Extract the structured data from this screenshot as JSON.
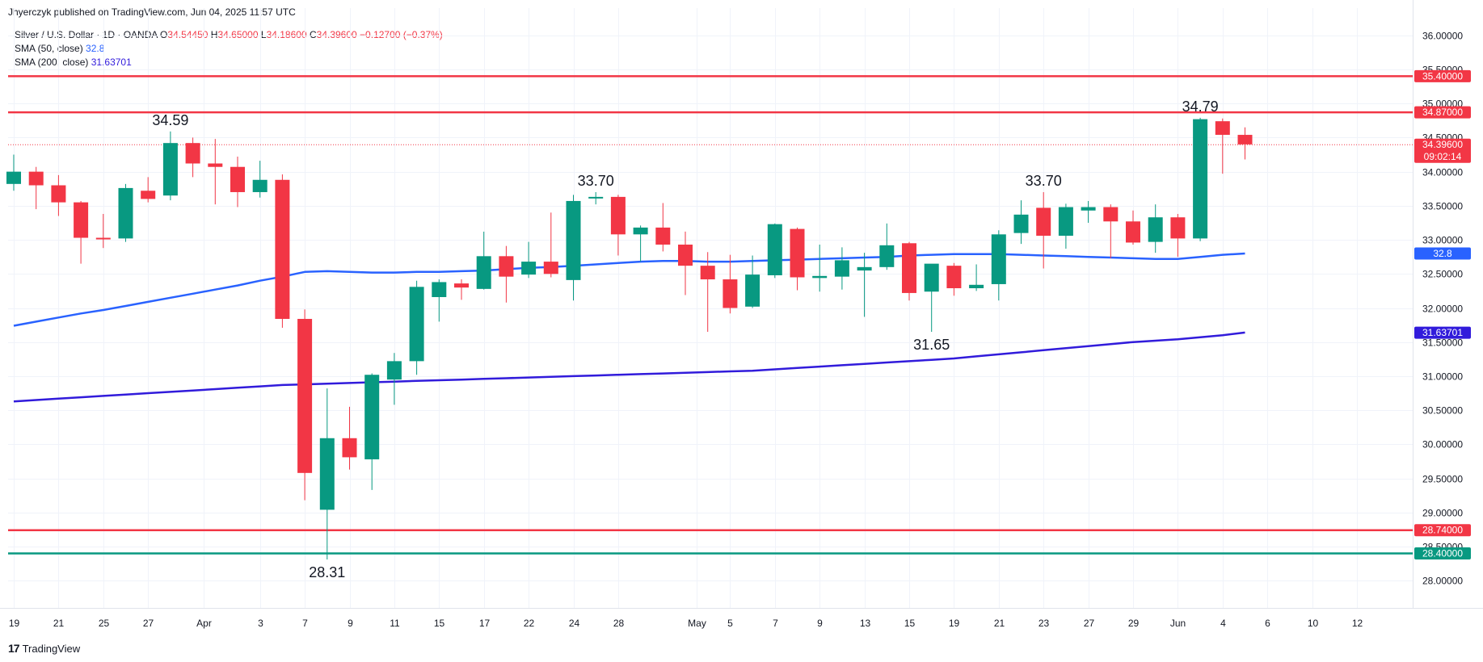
{
  "header": {
    "publisher_text": "Jhyerczyk published on TradingView.com, Jun 04, 2025 11:57 UTC"
  },
  "legend": {
    "symbol": "Silver / U.S. Dollar · 1D · OANDA",
    "open_label": "O",
    "open": "34.54450",
    "high_label": "H",
    "high": "34.65000",
    "low_label": "L",
    "low": "34.18600",
    "close_label": "C",
    "close": "34.39600",
    "change": "−0.12700 (−0.37%)",
    "sma50_label": "SMA (50, close)",
    "sma50_value": "32.8",
    "sma200_label": "SMA (200, close)",
    "sma200_value": "31.63701"
  },
  "footer": {
    "logo_text": "TradingView"
  },
  "colors": {
    "up": "#089981",
    "down": "#f23645",
    "sma50": "#2962ff",
    "sma200": "#311bdb",
    "resistance": "#f23645",
    "support_green": "#089981",
    "grid": "#f0f3fa",
    "axis_text": "#131722"
  },
  "chart_data": {
    "type": "candlestick",
    "title": "Silver / U.S. Dollar · 1D · OANDA",
    "ylim": [
      27.6,
      36.4
    ],
    "y_ticks": [
      "28.00000",
      "28.50000",
      "29.00000",
      "29.50000",
      "30.00000",
      "30.50000",
      "31.00000",
      "31.50000",
      "32.00000",
      "32.50000",
      "33.00000",
      "33.50000",
      "34.00000",
      "34.50000",
      "35.00000",
      "35.50000",
      "36.00000"
    ],
    "x_tick_labels": [
      {
        "label": "19",
        "i": 0
      },
      {
        "label": "21",
        "i": 2
      },
      {
        "label": "25",
        "i": 4
      },
      {
        "label": "27",
        "i": 6
      },
      {
        "label": "Apr",
        "i": 8.5
      },
      {
        "label": "3",
        "i": 11
      },
      {
        "label": "7",
        "i": 13
      },
      {
        "label": "9",
        "i": 15
      },
      {
        "label": "11",
        "i": 17
      },
      {
        "label": "15",
        "i": 19
      },
      {
        "label": "17",
        "i": 21
      },
      {
        "label": "22",
        "i": 23
      },
      {
        "label": "24",
        "i": 25
      },
      {
        "label": "28",
        "i": 27
      },
      {
        "label": "May",
        "i": 30.5
      },
      {
        "label": "5",
        "i": 32
      },
      {
        "label": "7",
        "i": 34
      },
      {
        "label": "9",
        "i": 36
      },
      {
        "label": "13",
        "i": 38
      },
      {
        "label": "15",
        "i": 40
      },
      {
        "label": "19",
        "i": 42
      },
      {
        "label": "21",
        "i": 44
      },
      {
        "label": "23",
        "i": 46
      },
      {
        "label": "27",
        "i": 48
      },
      {
        "label": "29",
        "i": 50
      },
      {
        "label": "Jun",
        "i": 52
      },
      {
        "label": "4",
        "i": 54
      },
      {
        "label": "6",
        "i": 56
      },
      {
        "label": "10",
        "i": 58
      },
      {
        "label": "12",
        "i": 60
      }
    ],
    "candles": [
      {
        "o": 33.82,
        "h": 34.25,
        "l": 33.72,
        "c": 34.0
      },
      {
        "o": 34.0,
        "h": 34.07,
        "l": 33.45,
        "c": 33.8
      },
      {
        "o": 33.8,
        "h": 33.95,
        "l": 33.35,
        "c": 33.55
      },
      {
        "o": 33.55,
        "h": 33.57,
        "l": 32.65,
        "c": 33.03
      },
      {
        "o": 33.03,
        "h": 33.38,
        "l": 32.88,
        "c": 33.02
      },
      {
        "o": 33.02,
        "h": 33.82,
        "l": 32.97,
        "c": 33.76
      },
      {
        "o": 33.72,
        "h": 33.92,
        "l": 33.55,
        "c": 33.6
      },
      {
        "o": 33.65,
        "h": 34.59,
        "l": 33.58,
        "c": 34.42
      },
      {
        "o": 34.42,
        "h": 34.5,
        "l": 33.92,
        "c": 34.12
      },
      {
        "o": 34.12,
        "h": 34.48,
        "l": 33.52,
        "c": 34.07
      },
      {
        "o": 34.07,
        "h": 34.22,
        "l": 33.48,
        "c": 33.7
      },
      {
        "o": 33.7,
        "h": 34.16,
        "l": 33.62,
        "c": 33.88
      },
      {
        "o": 33.88,
        "h": 33.96,
        "l": 31.71,
        "c": 31.84
      },
      {
        "o": 31.84,
        "h": 31.98,
        "l": 29.18,
        "c": 29.58
      },
      {
        "o": 29.04,
        "h": 30.82,
        "l": 28.31,
        "c": 30.09
      },
      {
        "o": 30.09,
        "h": 30.55,
        "l": 29.63,
        "c": 29.81
      },
      {
        "o": 29.78,
        "h": 31.04,
        "l": 29.33,
        "c": 31.02
      },
      {
        "o": 30.95,
        "h": 31.34,
        "l": 30.58,
        "c": 31.22
      },
      {
        "o": 31.22,
        "h": 32.4,
        "l": 31.02,
        "c": 32.31
      },
      {
        "o": 32.16,
        "h": 32.42,
        "l": 31.8,
        "c": 32.38
      },
      {
        "o": 32.36,
        "h": 32.42,
        "l": 32.12,
        "c": 32.3
      },
      {
        "o": 32.28,
        "h": 33.12,
        "l": 32.27,
        "c": 32.76
      },
      {
        "o": 32.76,
        "h": 32.91,
        "l": 32.08,
        "c": 32.46
      },
      {
        "o": 32.49,
        "h": 32.97,
        "l": 32.44,
        "c": 32.68
      },
      {
        "o": 32.68,
        "h": 33.4,
        "l": 32.45,
        "c": 32.5
      },
      {
        "o": 32.41,
        "h": 33.66,
        "l": 32.11,
        "c": 33.57
      },
      {
        "o": 33.61,
        "h": 33.7,
        "l": 33.52,
        "c": 33.63
      },
      {
        "o": 33.63,
        "h": 33.66,
        "l": 32.77,
        "c": 33.08
      },
      {
        "o": 33.08,
        "h": 33.21,
        "l": 32.68,
        "c": 33.18
      },
      {
        "o": 33.18,
        "h": 33.54,
        "l": 32.83,
        "c": 32.93
      },
      {
        "o": 32.93,
        "h": 33.12,
        "l": 32.19,
        "c": 32.62
      },
      {
        "o": 32.62,
        "h": 32.82,
        "l": 31.65,
        "c": 32.42
      },
      {
        "o": 32.42,
        "h": 32.78,
        "l": 31.92,
        "c": 32.0
      },
      {
        "o": 32.02,
        "h": 32.77,
        "l": 32.0,
        "c": 32.49
      },
      {
        "o": 32.48,
        "h": 33.24,
        "l": 32.44,
        "c": 33.23
      },
      {
        "o": 33.16,
        "h": 33.18,
        "l": 32.26,
        "c": 32.45
      },
      {
        "o": 32.44,
        "h": 32.93,
        "l": 32.24,
        "c": 32.47
      },
      {
        "o": 32.46,
        "h": 32.89,
        "l": 32.27,
        "c": 32.7
      },
      {
        "o": 32.55,
        "h": 32.81,
        "l": 31.87,
        "c": 32.6
      },
      {
        "o": 32.6,
        "h": 33.24,
        "l": 32.56,
        "c": 32.92
      },
      {
        "o": 32.95,
        "h": 32.97,
        "l": 32.11,
        "c": 32.22
      },
      {
        "o": 32.24,
        "h": 32.64,
        "l": 31.65,
        "c": 32.65
      },
      {
        "o": 32.62,
        "h": 32.66,
        "l": 32.18,
        "c": 32.29
      },
      {
        "o": 32.29,
        "h": 32.64,
        "l": 32.25,
        "c": 32.34
      },
      {
        "o": 32.35,
        "h": 33.14,
        "l": 32.11,
        "c": 33.08
      },
      {
        "o": 33.1,
        "h": 33.58,
        "l": 32.94,
        "c": 33.37
      },
      {
        "o": 33.47,
        "h": 33.7,
        "l": 32.58,
        "c": 33.06
      },
      {
        "o": 33.06,
        "h": 33.53,
        "l": 32.87,
        "c": 33.48
      },
      {
        "o": 33.43,
        "h": 33.57,
        "l": 33.25,
        "c": 33.48
      },
      {
        "o": 33.48,
        "h": 33.52,
        "l": 32.73,
        "c": 33.27
      },
      {
        "o": 33.27,
        "h": 33.43,
        "l": 32.93,
        "c": 32.96
      },
      {
        "o": 32.97,
        "h": 33.52,
        "l": 32.81,
        "c": 33.33
      },
      {
        "o": 33.33,
        "h": 33.38,
        "l": 32.75,
        "c": 33.02
      },
      {
        "o": 33.02,
        "h": 34.79,
        "l": 32.98,
        "c": 34.77
      },
      {
        "o": 34.74,
        "h": 34.78,
        "l": 33.97,
        "c": 34.54
      },
      {
        "o": 34.54,
        "h": 34.65,
        "l": 34.18,
        "c": 34.4
      }
    ],
    "sma50": [
      31.74,
      31.8,
      31.86,
      31.92,
      31.97,
      32.03,
      32.09,
      32.15,
      32.21,
      32.27,
      32.33,
      32.4,
      32.46,
      32.53,
      32.54,
      32.53,
      32.52,
      32.52,
      32.53,
      32.53,
      32.54,
      32.55,
      32.57,
      32.59,
      32.6,
      32.62,
      32.64,
      32.66,
      32.68,
      32.69,
      32.69,
      32.68,
      32.68,
      32.69,
      32.7,
      32.71,
      32.72,
      32.73,
      32.74,
      32.75,
      32.77,
      32.78,
      32.79,
      32.79,
      32.79,
      32.78,
      32.77,
      32.76,
      32.75,
      32.74,
      32.73,
      32.72,
      32.72,
      32.75,
      32.78,
      32.8
    ],
    "sma200": [
      30.63,
      30.65,
      30.67,
      30.69,
      30.71,
      30.73,
      30.75,
      30.77,
      30.79,
      30.81,
      30.83,
      30.85,
      30.87,
      30.88,
      30.89,
      30.9,
      30.91,
      30.92,
      30.93,
      30.94,
      30.95,
      30.96,
      30.97,
      30.98,
      30.99,
      31.0,
      31.01,
      31.02,
      31.03,
      31.04,
      31.05,
      31.06,
      31.07,
      31.08,
      31.1,
      31.12,
      31.14,
      31.16,
      31.18,
      31.2,
      31.22,
      31.24,
      31.26,
      31.29,
      31.32,
      31.35,
      31.38,
      31.41,
      31.44,
      31.47,
      31.5,
      31.52,
      31.54,
      31.57,
      31.6,
      31.64
    ],
    "horizontal_lines": [
      {
        "value": 35.4,
        "label": "35.40000",
        "color": "#f23645"
      },
      {
        "value": 34.87,
        "label": "34.87000",
        "color": "#f23645"
      },
      {
        "value": 28.74,
        "label": "28.74000",
        "color": "#f23645"
      },
      {
        "value": 28.4,
        "label": "28.40000",
        "color": "#089981"
      }
    ],
    "price_line": {
      "value": 34.396,
      "label": "34.39600",
      "countdown": "09:02:14"
    },
    "sma_tags": [
      {
        "value": 32.8,
        "label": "32.8",
        "color": "#2962ff"
      },
      {
        "value": 31.637,
        "label": "31.63701",
        "color": "#311bdb"
      }
    ],
    "annotations": [
      {
        "text": "34.59",
        "i": 7,
        "value": 34.59,
        "pos": "above"
      },
      {
        "text": "28.31",
        "i": 14,
        "value": 28.31,
        "pos": "below"
      },
      {
        "text": "33.70",
        "i": 26,
        "value": 33.7,
        "pos": "above"
      },
      {
        "text": "33.70",
        "i": 46,
        "value": 33.7,
        "pos": "above"
      },
      {
        "text": "31.65",
        "i": 41,
        "value": 31.65,
        "pos": "below"
      },
      {
        "text": "34.79",
        "i": 53,
        "value": 34.79,
        "pos": "above"
      }
    ]
  }
}
